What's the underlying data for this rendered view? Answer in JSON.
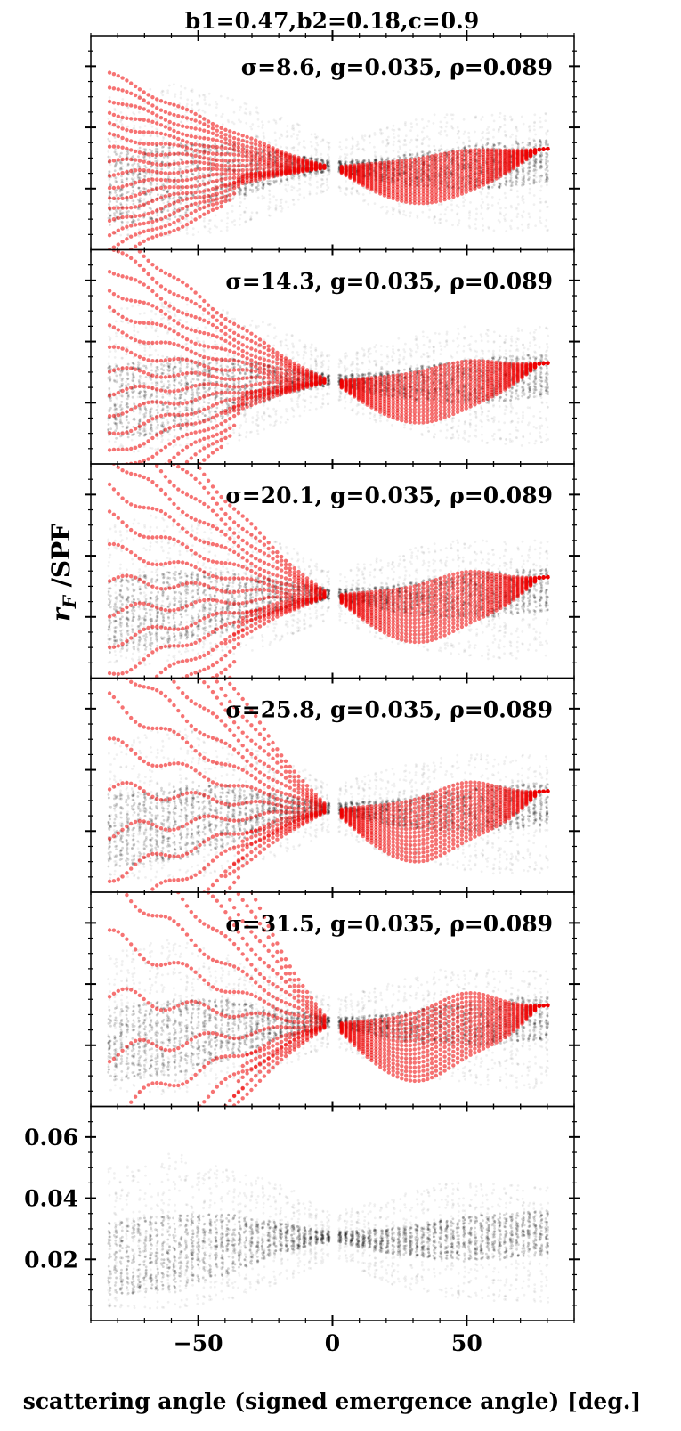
{
  "figure": {
    "title": "b1=0.47,b2=0.18,c=0.9",
    "ylabel": "r_F /SPF",
    "ylabel_main": "r",
    "ylabel_sub": "F",
    "ylabel_rest": " /SPF",
    "xlabel": "scattering angle (signed emergence angle) [deg.]",
    "colors": {
      "observed": "#000000",
      "model": "#ee0000",
      "axes": "#000000"
    }
  },
  "chart_data": {
    "type": "scatter",
    "sharex": true,
    "xlim": [
      -90,
      90
    ],
    "xticks": [
      -50,
      0,
      50
    ],
    "xticklabels": [
      "−50",
      "0",
      "50"
    ],
    "panels": [
      {
        "label": "σ=8.6, g=0.035, ρ=0.089",
        "sigma": 8.6,
        "g": 0.035,
        "rho": 0.089,
        "series": [
          "observed",
          "model"
        ]
      },
      {
        "label": "σ=14.3, g=0.035, ρ=0.089",
        "sigma": 14.3,
        "g": 0.035,
        "rho": 0.089,
        "series": [
          "observed",
          "model"
        ]
      },
      {
        "label": "σ=20.1, g=0.035, ρ=0.089",
        "sigma": 20.1,
        "g": 0.035,
        "rho": 0.089,
        "series": [
          "observed",
          "model"
        ]
      },
      {
        "label": "σ=25.8, g=0.035, ρ=0.089",
        "sigma": 25.8,
        "g": 0.035,
        "rho": 0.089,
        "series": [
          "observed",
          "model"
        ]
      },
      {
        "label": "σ=31.5, g=0.035, ρ=0.089",
        "sigma": 31.5,
        "g": 0.035,
        "rho": 0.089,
        "series": [
          "observed",
          "model"
        ]
      },
      {
        "label": "",
        "series": [
          "observed"
        ]
      }
    ],
    "ylim": [
      0.0,
      0.07
    ],
    "yticks": [
      0.02,
      0.04,
      0.06
    ],
    "yticklabels": [
      "0.02",
      "0.04",
      "0.06"
    ],
    "observed": {
      "x_range": [
        -83,
        81
      ],
      "x_step": 2.2,
      "gap_near": 0,
      "envelope": [
        {
          "x": -83,
          "ymin": 0.004,
          "ymax": 0.05,
          "dense_min": 0.008,
          "dense_max": 0.032
        },
        {
          "x": -60,
          "ymin": 0.004,
          "ymax": 0.055,
          "dense_min": 0.01,
          "dense_max": 0.035
        },
        {
          "x": -40,
          "ymin": 0.006,
          "ymax": 0.05,
          "dense_min": 0.015,
          "dense_max": 0.035
        },
        {
          "x": -20,
          "ymin": 0.012,
          "ymax": 0.045,
          "dense_min": 0.022,
          "dense_max": 0.032
        },
        {
          "x": 0,
          "ymin": 0.02,
          "ymax": 0.035,
          "dense_min": 0.026,
          "dense_max": 0.029
        },
        {
          "x": 20,
          "ymin": 0.012,
          "ymax": 0.04,
          "dense_min": 0.022,
          "dense_max": 0.03
        },
        {
          "x": 40,
          "ymin": 0.008,
          "ymax": 0.045,
          "dense_min": 0.02,
          "dense_max": 0.033
        },
        {
          "x": 60,
          "ymin": 0.006,
          "ymax": 0.045,
          "dense_min": 0.02,
          "dense_max": 0.035
        },
        {
          "x": 81,
          "ymin": 0.006,
          "ymax": 0.045,
          "dense_min": 0.022,
          "dense_max": 0.036
        }
      ]
    },
    "model": {
      "x_range": [
        -83,
        81
      ],
      "center_value": 0.027,
      "right_peak_x": 50
    }
  }
}
